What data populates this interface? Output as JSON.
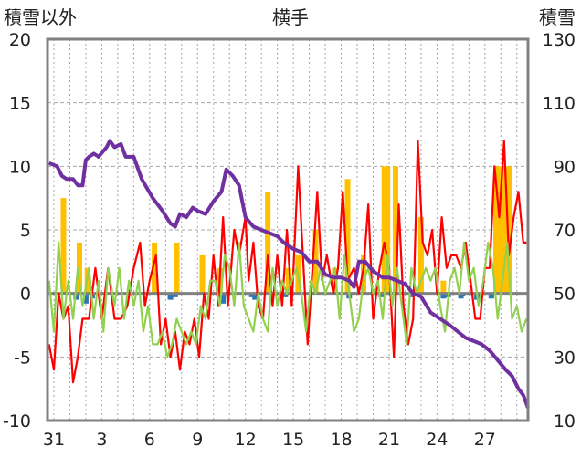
{
  "chart_data": {
    "type": "line",
    "title": "横手",
    "ylabel_left": "積雪以外",
    "ylabel_right": "積雪",
    "y_left": {
      "min": -10,
      "max": 20,
      "ticks": [
        20,
        15,
        10,
        5,
        0,
        -5,
        -10
      ]
    },
    "y_right": {
      "min": 10,
      "max": 130,
      "ticks": [
        130,
        110,
        90,
        70,
        50,
        30,
        10
      ]
    },
    "x_ticks": [
      "31",
      "3",
      "6",
      "9",
      "12",
      "15",
      "18",
      "21",
      "24",
      "27"
    ],
    "x_range": [
      -0.4,
      29.7
    ],
    "series": [
      {
        "key": "snowfall",
        "type": "bar",
        "axis": "left",
        "color": "#ffc000",
        "points": [
          [
            0.6,
            7.5
          ],
          [
            1.6,
            4
          ],
          [
            2.1,
            2
          ],
          [
            6.3,
            4
          ],
          [
            7.7,
            4
          ],
          [
            9.3,
            3
          ],
          [
            10.4,
            2
          ],
          [
            13.4,
            8
          ],
          [
            14.7,
            2
          ],
          [
            15.3,
            3
          ],
          [
            16.4,
            5
          ],
          [
            17.6,
            2
          ],
          [
            18.4,
            9
          ],
          [
            19.4,
            3
          ],
          [
            20.7,
            10
          ],
          [
            20.9,
            10
          ],
          [
            21.4,
            10
          ],
          [
            23.0,
            6
          ],
          [
            24.4,
            1
          ],
          [
            27.7,
            10
          ],
          [
            27.9,
            10
          ],
          [
            28.1,
            10
          ],
          [
            28.3,
            10
          ],
          [
            28.5,
            10
          ]
        ]
      },
      {
        "key": "precip",
        "type": "bar",
        "axis": "left",
        "color": "#2e75b6",
        "points": [
          [
            1.4,
            -0.5
          ],
          [
            2.0,
            -0.8
          ],
          [
            2.4,
            -0.4
          ],
          [
            7.3,
            -0.5
          ],
          [
            7.6,
            -0.3
          ],
          [
            10.4,
            -0.4
          ],
          [
            10.6,
            -0.8
          ],
          [
            12.4,
            -0.3
          ],
          [
            12.6,
            -0.5
          ],
          [
            14.5,
            -0.3
          ],
          [
            18.5,
            -0.4
          ],
          [
            20.5,
            -0.3
          ],
          [
            22.4,
            -0.3
          ],
          [
            24.4,
            -0.4
          ],
          [
            24.7,
            -0.3
          ],
          [
            25.5,
            -0.4
          ],
          [
            25.6,
            -0.2
          ],
          [
            26.5,
            -0.5
          ],
          [
            26.7,
            -0.3
          ],
          [
            27.4,
            -0.4
          ]
        ]
      },
      {
        "key": "temp_max",
        "type": "line",
        "axis": "left",
        "color": "#ff0000",
        "points": [
          [
            -0.3,
            -4
          ],
          [
            0,
            -6
          ],
          [
            0.3,
            0
          ],
          [
            0.6,
            -2
          ],
          [
            0.9,
            -1
          ],
          [
            1.2,
            -7
          ],
          [
            1.5,
            -5
          ],
          [
            1.8,
            -2
          ],
          [
            2.2,
            -2
          ],
          [
            2.6,
            2
          ],
          [
            3.0,
            -2
          ],
          [
            3.4,
            2
          ],
          [
            3.8,
            -2
          ],
          [
            4.2,
            -2
          ],
          [
            4.6,
            -1
          ],
          [
            5.0,
            2
          ],
          [
            5.4,
            4
          ],
          [
            5.7,
            -1
          ],
          [
            6.0,
            1
          ],
          [
            6.4,
            3
          ],
          [
            6.7,
            -4
          ],
          [
            7.0,
            -2
          ],
          [
            7.3,
            -5
          ],
          [
            7.6,
            -3
          ],
          [
            7.9,
            -6
          ],
          [
            8.2,
            -3
          ],
          [
            8.5,
            -4
          ],
          [
            8.8,
            -2
          ],
          [
            9.1,
            -5
          ],
          [
            9.4,
            0
          ],
          [
            9.7,
            -2
          ],
          [
            10.0,
            3
          ],
          [
            10.3,
            -1
          ],
          [
            10.6,
            6
          ],
          [
            10.9,
            -1
          ],
          [
            11.3,
            5
          ],
          [
            11.6,
            3
          ],
          [
            12.0,
            6
          ],
          [
            12.2,
            1
          ],
          [
            12.5,
            4
          ],
          [
            12.8,
            -1
          ],
          [
            13.1,
            -2
          ],
          [
            13.4,
            3
          ],
          [
            13.7,
            -1
          ],
          [
            14.0,
            3
          ],
          [
            14.3,
            -1
          ],
          [
            14.6,
            5
          ],
          [
            14.9,
            -1
          ],
          [
            15.3,
            10
          ],
          [
            15.6,
            3
          ],
          [
            15.9,
            -4
          ],
          [
            16.2,
            2
          ],
          [
            16.5,
            8
          ],
          [
            16.8,
            1
          ],
          [
            17.1,
            3
          ],
          [
            17.5,
            0
          ],
          [
            17.8,
            2
          ],
          [
            18.1,
            8
          ],
          [
            18.4,
            1
          ],
          [
            18.8,
            2
          ],
          [
            19.1,
            0
          ],
          [
            19.4,
            2
          ],
          [
            19.7,
            7
          ],
          [
            20.0,
            -2
          ],
          [
            20.4,
            2
          ],
          [
            20.7,
            4
          ],
          [
            21.0,
            2
          ],
          [
            21.3,
            -5
          ],
          [
            21.6,
            7
          ],
          [
            21.9,
            -1
          ],
          [
            22.2,
            -4
          ],
          [
            22.5,
            -2
          ],
          [
            22.8,
            12
          ],
          [
            23.1,
            4
          ],
          [
            23.4,
            3
          ],
          [
            23.7,
            5
          ],
          [
            24.0,
            0
          ],
          [
            24.3,
            6
          ],
          [
            24.6,
            2
          ],
          [
            24.9,
            3
          ],
          [
            25.2,
            3
          ],
          [
            25.5,
            2
          ],
          [
            25.8,
            4
          ],
          [
            26.1,
            1
          ],
          [
            26.4,
            -2
          ],
          [
            26.7,
            -2
          ],
          [
            27.0,
            2
          ],
          [
            27.3,
            2
          ],
          [
            27.6,
            10
          ],
          [
            27.9,
            6
          ],
          [
            28.2,
            12
          ],
          [
            28.5,
            3
          ],
          [
            28.8,
            6
          ],
          [
            29.1,
            8
          ],
          [
            29.4,
            4
          ],
          [
            29.6,
            4
          ]
        ]
      },
      {
        "key": "temp_min",
        "type": "line",
        "axis": "left",
        "color": "#92d050",
        "points": [
          [
            -0.3,
            1
          ],
          [
            0,
            -3
          ],
          [
            0.3,
            4
          ],
          [
            0.6,
            -2
          ],
          [
            0.9,
            1
          ],
          [
            1.2,
            -2
          ],
          [
            1.5,
            2
          ],
          [
            1.8,
            -1
          ],
          [
            2.2,
            2
          ],
          [
            2.5,
            -2
          ],
          [
            2.8,
            1
          ],
          [
            3.1,
            -3
          ],
          [
            3.4,
            2
          ],
          [
            3.8,
            -1
          ],
          [
            4.1,
            2
          ],
          [
            4.4,
            -2
          ],
          [
            4.7,
            1
          ],
          [
            5.0,
            -1
          ],
          [
            5.3,
            1
          ],
          [
            5.6,
            -3
          ],
          [
            5.9,
            -1
          ],
          [
            6.2,
            -4
          ],
          [
            6.5,
            -4
          ],
          [
            6.8,
            -3
          ],
          [
            7.1,
            -5
          ],
          [
            7.4,
            -4
          ],
          [
            7.7,
            -2
          ],
          [
            8.0,
            -3
          ],
          [
            8.3,
            -4
          ],
          [
            8.6,
            -3
          ],
          [
            8.9,
            -4
          ],
          [
            9.2,
            -1
          ],
          [
            9.5,
            -2
          ],
          [
            9.8,
            1
          ],
          [
            10.1,
            1
          ],
          [
            10.4,
            -1
          ],
          [
            10.7,
            3
          ],
          [
            11.0,
            2
          ],
          [
            11.3,
            -1
          ],
          [
            11.6,
            4
          ],
          [
            11.9,
            -1
          ],
          [
            12.2,
            -2
          ],
          [
            12.5,
            -3
          ],
          [
            12.8,
            0
          ],
          [
            13.1,
            -2
          ],
          [
            13.4,
            -3
          ],
          [
            13.7,
            2
          ],
          [
            14.0,
            -1
          ],
          [
            14.3,
            1
          ],
          [
            14.6,
            0
          ],
          [
            14.9,
            1
          ],
          [
            15.2,
            2
          ],
          [
            15.5,
            0
          ],
          [
            15.8,
            -3
          ],
          [
            16.1,
            1
          ],
          [
            16.4,
            0
          ],
          [
            16.7,
            2
          ],
          [
            17.0,
            0
          ],
          [
            17.3,
            1
          ],
          [
            17.6,
            2
          ],
          [
            17.9,
            -2
          ],
          [
            18.2,
            3
          ],
          [
            18.5,
            0
          ],
          [
            18.8,
            -3
          ],
          [
            19.1,
            -2
          ],
          [
            19.4,
            1
          ],
          [
            19.7,
            2
          ],
          [
            20.0,
            0
          ],
          [
            20.3,
            1
          ],
          [
            20.6,
            -2
          ],
          [
            20.9,
            3
          ],
          [
            21.2,
            -1
          ],
          [
            21.5,
            2
          ],
          [
            21.8,
            -1
          ],
          [
            22.1,
            -4
          ],
          [
            22.4,
            2
          ],
          [
            22.7,
            0
          ],
          [
            23.0,
            1
          ],
          [
            23.3,
            2
          ],
          [
            23.6,
            1
          ],
          [
            23.9,
            2
          ],
          [
            24.2,
            -1
          ],
          [
            24.5,
            -3
          ],
          [
            24.8,
            1
          ],
          [
            25.1,
            2
          ],
          [
            25.4,
            0
          ],
          [
            25.7,
            4
          ],
          [
            26.0,
            1
          ],
          [
            26.3,
            2
          ],
          [
            26.6,
            -1
          ],
          [
            26.9,
            1
          ],
          [
            27.2,
            4
          ],
          [
            27.5,
            2
          ],
          [
            27.8,
            -2
          ],
          [
            28.1,
            1
          ],
          [
            28.4,
            4
          ],
          [
            28.7,
            -2
          ],
          [
            29.0,
            -1
          ],
          [
            29.3,
            -3
          ],
          [
            29.6,
            -2
          ]
        ]
      },
      {
        "key": "snow_depth",
        "type": "line",
        "axis": "right",
        "color": "#7030a0",
        "points": [
          [
            -0.3,
            91
          ],
          [
            0.2,
            90
          ],
          [
            0.5,
            87
          ],
          [
            0.8,
            86
          ],
          [
            1.2,
            86
          ],
          [
            1.5,
            84
          ],
          [
            1.8,
            84
          ],
          [
            2.0,
            92
          ],
          [
            2.2,
            93
          ],
          [
            2.5,
            94
          ],
          [
            2.8,
            93
          ],
          [
            3.3,
            96
          ],
          [
            3.5,
            98
          ],
          [
            3.8,
            96
          ],
          [
            4.2,
            97
          ],
          [
            4.5,
            93
          ],
          [
            5.0,
            93
          ],
          [
            5.5,
            86
          ],
          [
            6.2,
            80
          ],
          [
            6.8,
            76
          ],
          [
            7.3,
            72
          ],
          [
            7.6,
            71
          ],
          [
            7.9,
            75
          ],
          [
            8.3,
            74
          ],
          [
            8.7,
            77
          ],
          [
            9.0,
            76
          ],
          [
            9.5,
            75
          ],
          [
            10.0,
            79
          ],
          [
            10.5,
            82
          ],
          [
            10.8,
            89
          ],
          [
            11.2,
            87
          ],
          [
            11.6,
            84
          ],
          [
            12.0,
            74
          ],
          [
            12.5,
            71
          ],
          [
            13.0,
            70
          ],
          [
            13.5,
            69
          ],
          [
            14.0,
            68
          ],
          [
            14.4,
            66
          ],
          [
            15.0,
            64
          ],
          [
            15.5,
            63
          ],
          [
            16.0,
            60
          ],
          [
            16.5,
            60
          ],
          [
            17.0,
            56
          ],
          [
            17.5,
            55
          ],
          [
            18.0,
            55
          ],
          [
            18.5,
            54
          ],
          [
            18.8,
            52
          ],
          [
            19.1,
            60
          ],
          [
            19.5,
            60
          ],
          [
            20.0,
            57
          ],
          [
            20.6,
            55
          ],
          [
            21.0,
            55
          ],
          [
            21.5,
            54
          ],
          [
            22.0,
            53
          ],
          [
            22.5,
            50
          ],
          [
            23.0,
            49
          ],
          [
            23.6,
            44
          ],
          [
            24.2,
            42
          ],
          [
            24.8,
            40
          ],
          [
            25.3,
            38
          ],
          [
            25.8,
            36
          ],
          [
            26.3,
            35
          ],
          [
            26.8,
            34
          ],
          [
            27.3,
            32
          ],
          [
            27.8,
            29
          ],
          [
            28.3,
            26
          ],
          [
            28.7,
            24
          ],
          [
            29.1,
            20
          ],
          [
            29.4,
            18
          ],
          [
            29.7,
            14
          ]
        ]
      }
    ],
    "legend": "none",
    "grid": "dashed horizontal and vertical"
  }
}
